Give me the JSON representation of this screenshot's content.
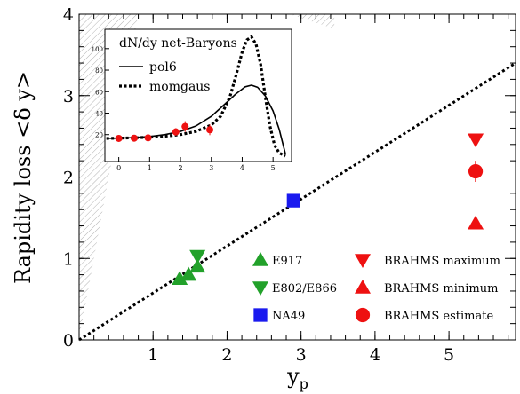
{
  "chart_data": [
    {
      "type": "scatter",
      "xlabel": "y",
      "xlabel_sub": "p",
      "ylabel": "Rapidity loss <δ y>",
      "xlim": [
        0,
        5.9
      ],
      "ylim": [
        0,
        4
      ],
      "x_ticks": [
        1,
        2,
        3,
        4,
        5
      ],
      "y_ticks": [
        0,
        1,
        2,
        3,
        4
      ],
      "grid": false,
      "reference_line": {
        "style": "dotted",
        "x": [
          0,
          5.9
        ],
        "y": [
          0,
          3.4
        ]
      },
      "shaded_regions": [
        {
          "name": "left-wedge",
          "polygon": [
            [
              0,
              0
            ],
            [
              0,
              4
            ],
            [
              0.8,
              4
            ]
          ]
        },
        {
          "name": "top-wedge",
          "polygon": [
            [
              2.85,
              4
            ],
            [
              3.45,
              4
            ],
            [
              3.45,
              3.82
            ]
          ]
        }
      ],
      "series": [
        {
          "name": "E917",
          "marker": "triangle-up",
          "color": "#22a12a",
          "points": [
            [
              1.36,
              0.75
            ],
            [
              1.48,
              0.8
            ],
            [
              1.6,
              0.9
            ]
          ]
        },
        {
          "name": "E802/E866",
          "marker": "triangle-down",
          "color": "#22a12a",
          "points": [
            [
              1.6,
              1.03
            ]
          ]
        },
        {
          "name": "NA49",
          "marker": "square",
          "color": "#1a1aef",
          "points": [
            [
              2.9,
              1.71
            ]
          ]
        },
        {
          "name": "BRAHMS maximum",
          "marker": "triangle-down",
          "color": "#ee1111",
          "points": [
            [
              5.36,
              2.46
            ]
          ]
        },
        {
          "name": "BRAHMS minimum",
          "marker": "triangle-up",
          "color": "#ee1111",
          "points": [
            [
              5.36,
              1.43
            ]
          ]
        },
        {
          "name": "BRAHMS estimate",
          "marker": "circle",
          "color": "#ee1111",
          "points": [
            [
              5.36,
              2.07
            ]
          ],
          "yerr": [
            0.13
          ]
        }
      ],
      "legend_left": [
        "E917",
        "E802/E866",
        "NA49"
      ],
      "legend_right": [
        "BRAHMS maximum",
        "BRAHMS minimum",
        "BRAHMS estimate"
      ]
    },
    {
      "type": "line",
      "title": "dN/dy net-Baryons",
      "xlim": [
        -0.45,
        5.6
      ],
      "ylim": [
        -5,
        118
      ],
      "x_ticks": [
        0,
        1,
        2,
        3,
        4,
        5
      ],
      "y_ticks": [
        20,
        40,
        60,
        80,
        100
      ],
      "series": [
        {
          "name": "pol6",
          "style": "solid",
          "x": [
            -0.4,
            0,
            0.5,
            1,
            1.5,
            2,
            2.5,
            3,
            3.5,
            3.8,
            4.1,
            4.3,
            4.5,
            4.75,
            5,
            5.2,
            5.4
          ],
          "y": [
            16.5,
            16.7,
            17.2,
            18.2,
            20,
            23,
            28,
            37,
            50,
            58,
            64.5,
            66,
            64,
            56,
            42,
            25,
            2
          ]
        },
        {
          "name": "momgaus",
          "style": "dotted",
          "x": [
            -0.4,
            0,
            0.5,
            1,
            1.5,
            2,
            2.5,
            3,
            3.3,
            3.6,
            3.8,
            4,
            4.15,
            4.3,
            4.45,
            4.6,
            4.75,
            4.9,
            5.05,
            5.2,
            5.4
          ],
          "y": [
            16.5,
            16.7,
            17,
            17.6,
            18.5,
            20,
            23,
            29,
            37,
            55,
            75,
            97,
            108,
            111,
            104,
            85,
            55,
            28,
            10,
            3,
            0
          ]
        },
        {
          "name": "data",
          "style": "points",
          "color": "#ee1111",
          "x": [
            0,
            0.5,
            0.95,
            1.85,
            2.15,
            2.95
          ],
          "y": [
            16.5,
            16.7,
            17,
            22.5,
            27.5,
            24.5
          ],
          "yerr": [
            2,
            2,
            2,
            3.5,
            5,
            5
          ]
        }
      ],
      "legend": [
        "pol6",
        "momgaus"
      ]
    }
  ]
}
